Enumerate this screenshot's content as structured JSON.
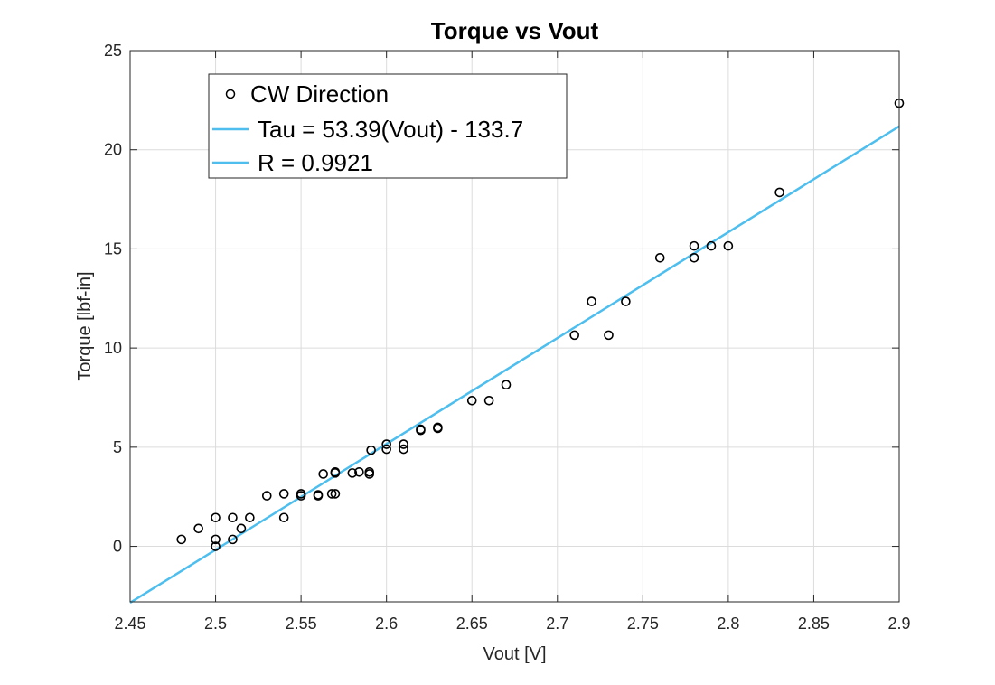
{
  "chart_data": {
    "type": "scatter",
    "title": "Torque vs Vout",
    "xlabel": "Vout [V]",
    "ylabel": "Torque [lbf-in]",
    "xlim": [
      2.45,
      2.9
    ],
    "ylim": [
      -2.8,
      25
    ],
    "xticks": [
      2.45,
      2.5,
      2.55,
      2.6,
      2.65,
      2.7,
      2.75,
      2.8,
      2.85,
      2.9
    ],
    "xtick_labels": [
      "2.45",
      "2.5",
      "2.55",
      "2.6",
      "2.65",
      "2.7",
      "2.75",
      "2.8",
      "2.85",
      "2.9"
    ],
    "yticks": [
      0,
      5,
      10,
      15,
      20,
      25
    ],
    "ytick_labels": [
      "0",
      "5",
      "10",
      "15",
      "20",
      "25"
    ],
    "grid": true,
    "legend_position": "top-left",
    "series": [
      {
        "name": "CW Direction",
        "kind": "scatter",
        "marker": "open-circle",
        "color": "#000000",
        "points": [
          [
            2.48,
            0.35
          ],
          [
            2.49,
            0.9
          ],
          [
            2.5,
            1.45
          ],
          [
            2.5,
            0.35
          ],
          [
            2.5,
            0.0
          ],
          [
            2.51,
            1.45
          ],
          [
            2.51,
            0.35
          ],
          [
            2.515,
            0.9
          ],
          [
            2.52,
            1.45
          ],
          [
            2.53,
            2.55
          ],
          [
            2.54,
            2.65
          ],
          [
            2.54,
            1.45
          ],
          [
            2.55,
            2.65
          ],
          [
            2.55,
            2.55
          ],
          [
            2.56,
            2.6
          ],
          [
            2.56,
            2.55
          ],
          [
            2.563,
            3.65
          ],
          [
            2.568,
            2.65
          ],
          [
            2.57,
            3.75
          ],
          [
            2.57,
            3.7
          ],
          [
            2.57,
            2.65
          ],
          [
            2.58,
            3.7
          ],
          [
            2.584,
            3.75
          ],
          [
            2.59,
            3.75
          ],
          [
            2.59,
            3.65
          ],
          [
            2.591,
            4.85
          ],
          [
            2.6,
            5.15
          ],
          [
            2.6,
            4.9
          ],
          [
            2.61,
            5.15
          ],
          [
            2.61,
            4.9
          ],
          [
            2.62,
            5.9
          ],
          [
            2.62,
            5.85
          ],
          [
            2.63,
            6.0
          ],
          [
            2.63,
            5.95
          ],
          [
            2.65,
            7.35
          ],
          [
            2.66,
            7.35
          ],
          [
            2.67,
            8.15
          ],
          [
            2.71,
            10.65
          ],
          [
            2.72,
            12.35
          ],
          [
            2.73,
            10.65
          ],
          [
            2.74,
            12.35
          ],
          [
            2.76,
            14.55
          ],
          [
            2.78,
            15.15
          ],
          [
            2.78,
            14.55
          ],
          [
            2.79,
            15.15
          ],
          [
            2.8,
            15.15
          ],
          [
            2.83,
            17.85
          ],
          [
            2.9,
            22.35
          ]
        ]
      },
      {
        "name": "Tau = 53.39(Vout) - 133.7",
        "kind": "line",
        "color": "#4DBEEE",
        "x": [
          2.45,
          2.9
        ],
        "y": [
          -2.8445,
          21.181
        ]
      },
      {
        "name": "R = 0.9921",
        "kind": "line",
        "color": "#4DBEEE"
      }
    ]
  }
}
